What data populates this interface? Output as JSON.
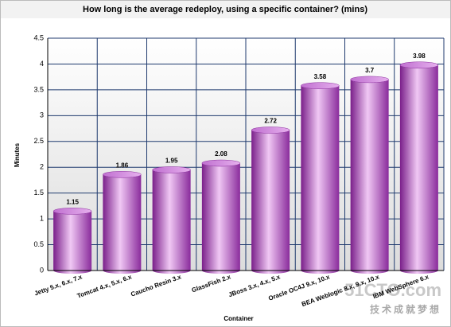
{
  "chart_data": {
    "type": "bar",
    "title": "How long is the average redeploy, using a specific container? (mins)",
    "x_label": "Container",
    "y_label": "Minutes",
    "categories": [
      "Jetty 5.x, 6.x, 7.x",
      "Tomcat 4.x, 5.x, 6.x",
      "Caucho Resin 3.x",
      "GlassFish 2.x",
      "JBoss 3.x, 4.x, 5.x",
      "Oracle OC4J 9.x, 10.x",
      "BEA Weblogic 8.x, 9.x, 10.x",
      "IBM WebSphere 6.x"
    ],
    "values": [
      1.15,
      1.86,
      1.95,
      2.08,
      2.72,
      3.58,
      3.7,
      3.98
    ],
    "color": "#a040b0",
    "ylim": [
      0,
      4.5
    ],
    "yticks": [
      0,
      0.5,
      1,
      1.5,
      2,
      2.5,
      3,
      3.5,
      4,
      4.5
    ],
    "grid": true,
    "watermark": [
      "51CTO.com",
      "技术成就梦想"
    ]
  }
}
